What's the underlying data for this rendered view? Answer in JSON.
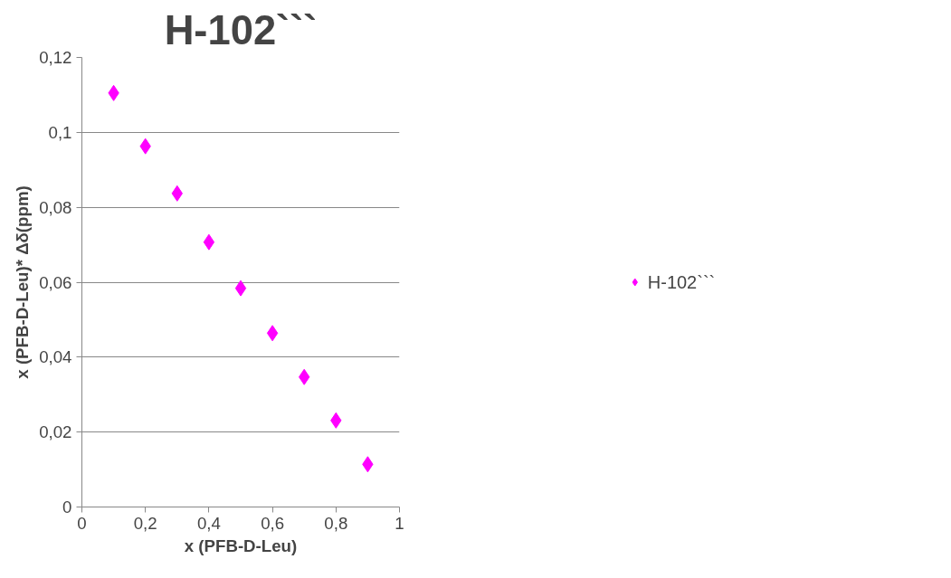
{
  "chart_data": {
    "type": "scatter",
    "title": "H-102```",
    "xlabel": "x (PFB-D-Leu)",
    "ylabel": "x (PFB-D-Leu)* Δδ(ppm)",
    "x": [
      0.1,
      0.2,
      0.3,
      0.4,
      0.5,
      0.6,
      0.7,
      0.8,
      0.9
    ],
    "series": [
      {
        "name": "H-102```",
        "color": "#ff00ff",
        "values": [
          0.1105,
          0.0963,
          0.0837,
          0.0707,
          0.0584,
          0.0464,
          0.0347,
          0.0231,
          0.0114
        ]
      }
    ],
    "xlim": [
      0,
      1
    ],
    "ylim": [
      0,
      0.12
    ],
    "xticks": [
      0,
      {
        "value": 0.2,
        "label": "0,2"
      },
      {
        "value": 0.4,
        "label": "0,4"
      },
      {
        "value": 0.6,
        "label": "0,6"
      },
      {
        "value": 0.8,
        "label": "0,8"
      },
      1
    ],
    "yticks": [
      0,
      {
        "value": 0.02,
        "label": "0,02"
      },
      {
        "value": 0.04,
        "label": "0,04"
      },
      {
        "value": 0.06,
        "label": "0,06"
      },
      {
        "value": 0.08,
        "label": "0,08"
      },
      {
        "value": 0.1,
        "label": "0,1"
      },
      {
        "value": 0.12,
        "label": "0,12"
      }
    ],
    "grid": "y",
    "legend": "right",
    "marker": "diamond"
  }
}
